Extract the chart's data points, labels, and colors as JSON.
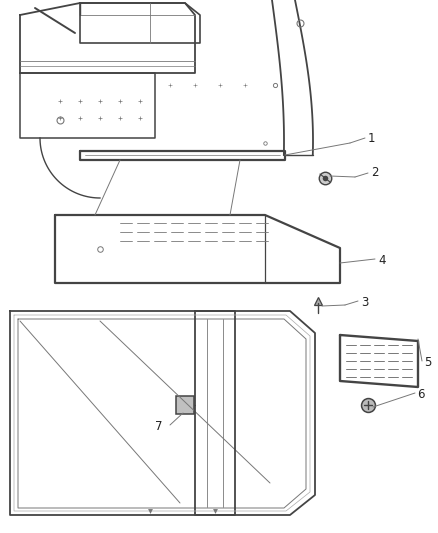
{
  "bg_color": "#ffffff",
  "lc": "#777777",
  "dc": "#444444",
  "label_color": "#222222",
  "label_fontsize": 8.5,
  "fig_width": 4.38,
  "fig_height": 5.33,
  "dpi": 100
}
